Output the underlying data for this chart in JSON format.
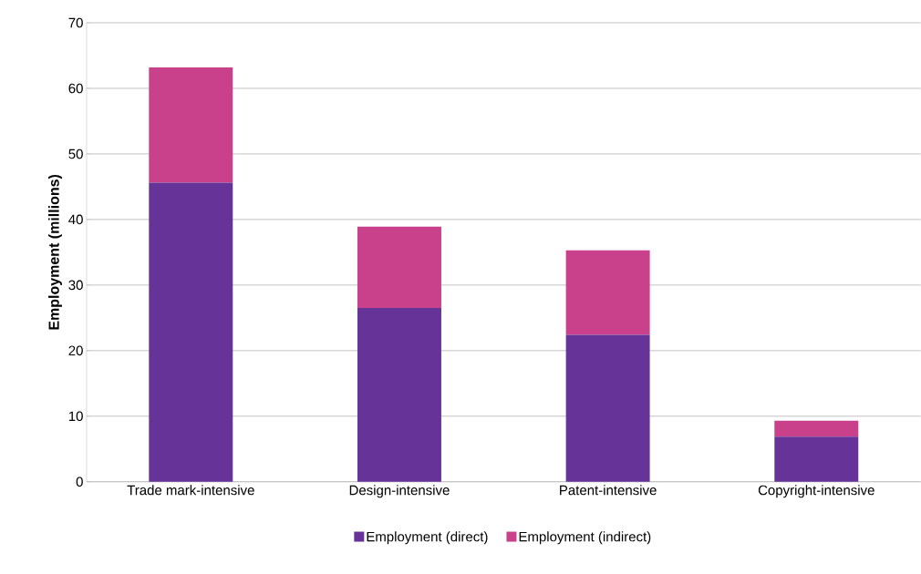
{
  "chart_data": {
    "type": "bar",
    "stacked": true,
    "ylabel": "Employment (millions)",
    "categories": [
      "Trade mark-intensive",
      "Design-intensive",
      "Patent-intensive",
      "Copyright-intensive"
    ],
    "series": [
      {
        "name": "Employment (direct)",
        "color": "#663399",
        "values": [
          45.6,
          26.5,
          22.4,
          6.9
        ]
      },
      {
        "name": "Employment (indirect)",
        "color": "#c8418a",
        "values": [
          17.6,
          12.4,
          12.9,
          2.4
        ]
      }
    ],
    "ylim": [
      0,
      70
    ],
    "yticks": [
      0,
      10,
      20,
      30,
      40,
      50,
      60,
      70
    ],
    "grid": "y",
    "legend": "bottom"
  }
}
